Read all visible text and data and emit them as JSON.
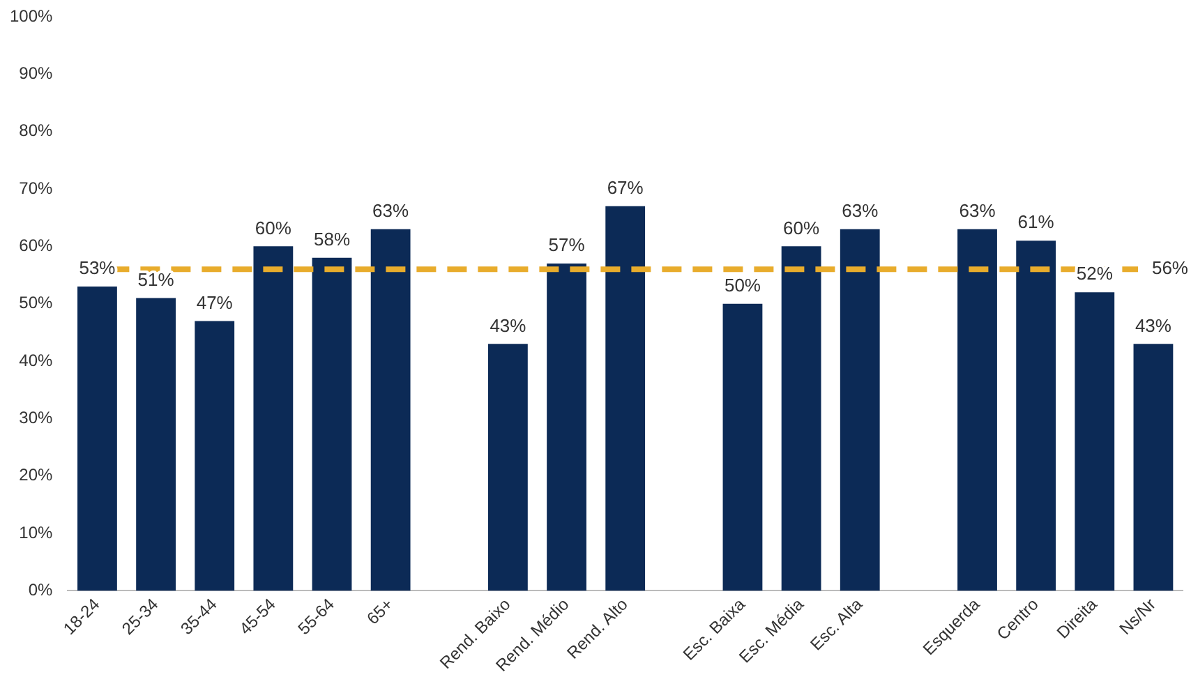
{
  "chart_data": {
    "type": "bar",
    "categories": [
      "18-24",
      "25-34",
      "35-44",
      "45-54",
      "55-64",
      "65+",
      null,
      "Rend. Baixo",
      "Rend. Médio",
      "Rend. Alto",
      null,
      "Esc. Baixa",
      "Esc. Média",
      "Esc. Alta",
      null,
      "Esquerda",
      "Centro",
      "Direita",
      "Ns/Nr"
    ],
    "values": [
      53,
      51,
      47,
      60,
      58,
      63,
      null,
      43,
      57,
      67,
      null,
      50,
      60,
      63,
      null,
      63,
      61,
      52,
      43
    ],
    "value_labels": [
      "53%",
      "51%",
      "47%",
      "60%",
      "58%",
      "63%",
      null,
      "43%",
      "57%",
      "67%",
      null,
      "50%",
      "60%",
      "63%",
      null,
      "63%",
      "61%",
      "52%",
      "43%"
    ],
    "color": "#0c2a56",
    "ylim": [
      0,
      100
    ],
    "yticks": [
      {
        "value": 0,
        "label": "0%"
      },
      {
        "value": 10,
        "label": "10%"
      },
      {
        "value": 20,
        "label": "20%"
      },
      {
        "value": 30,
        "label": "30%"
      },
      {
        "value": 40,
        "label": "40%"
      },
      {
        "value": 50,
        "label": "50%"
      },
      {
        "value": 60,
        "label": "60%"
      },
      {
        "value": 70,
        "label": "70%"
      },
      {
        "value": 80,
        "label": "80%"
      },
      {
        "value": 90,
        "label": "90%"
      },
      {
        "value": 100,
        "label": "100%"
      }
    ],
    "ref_lines": [
      {
        "axis": "y",
        "value": 56,
        "label": "56%",
        "color": "#e8ac2c",
        "line_style": "dashed"
      }
    ],
    "grid": false,
    "legend": false
  }
}
